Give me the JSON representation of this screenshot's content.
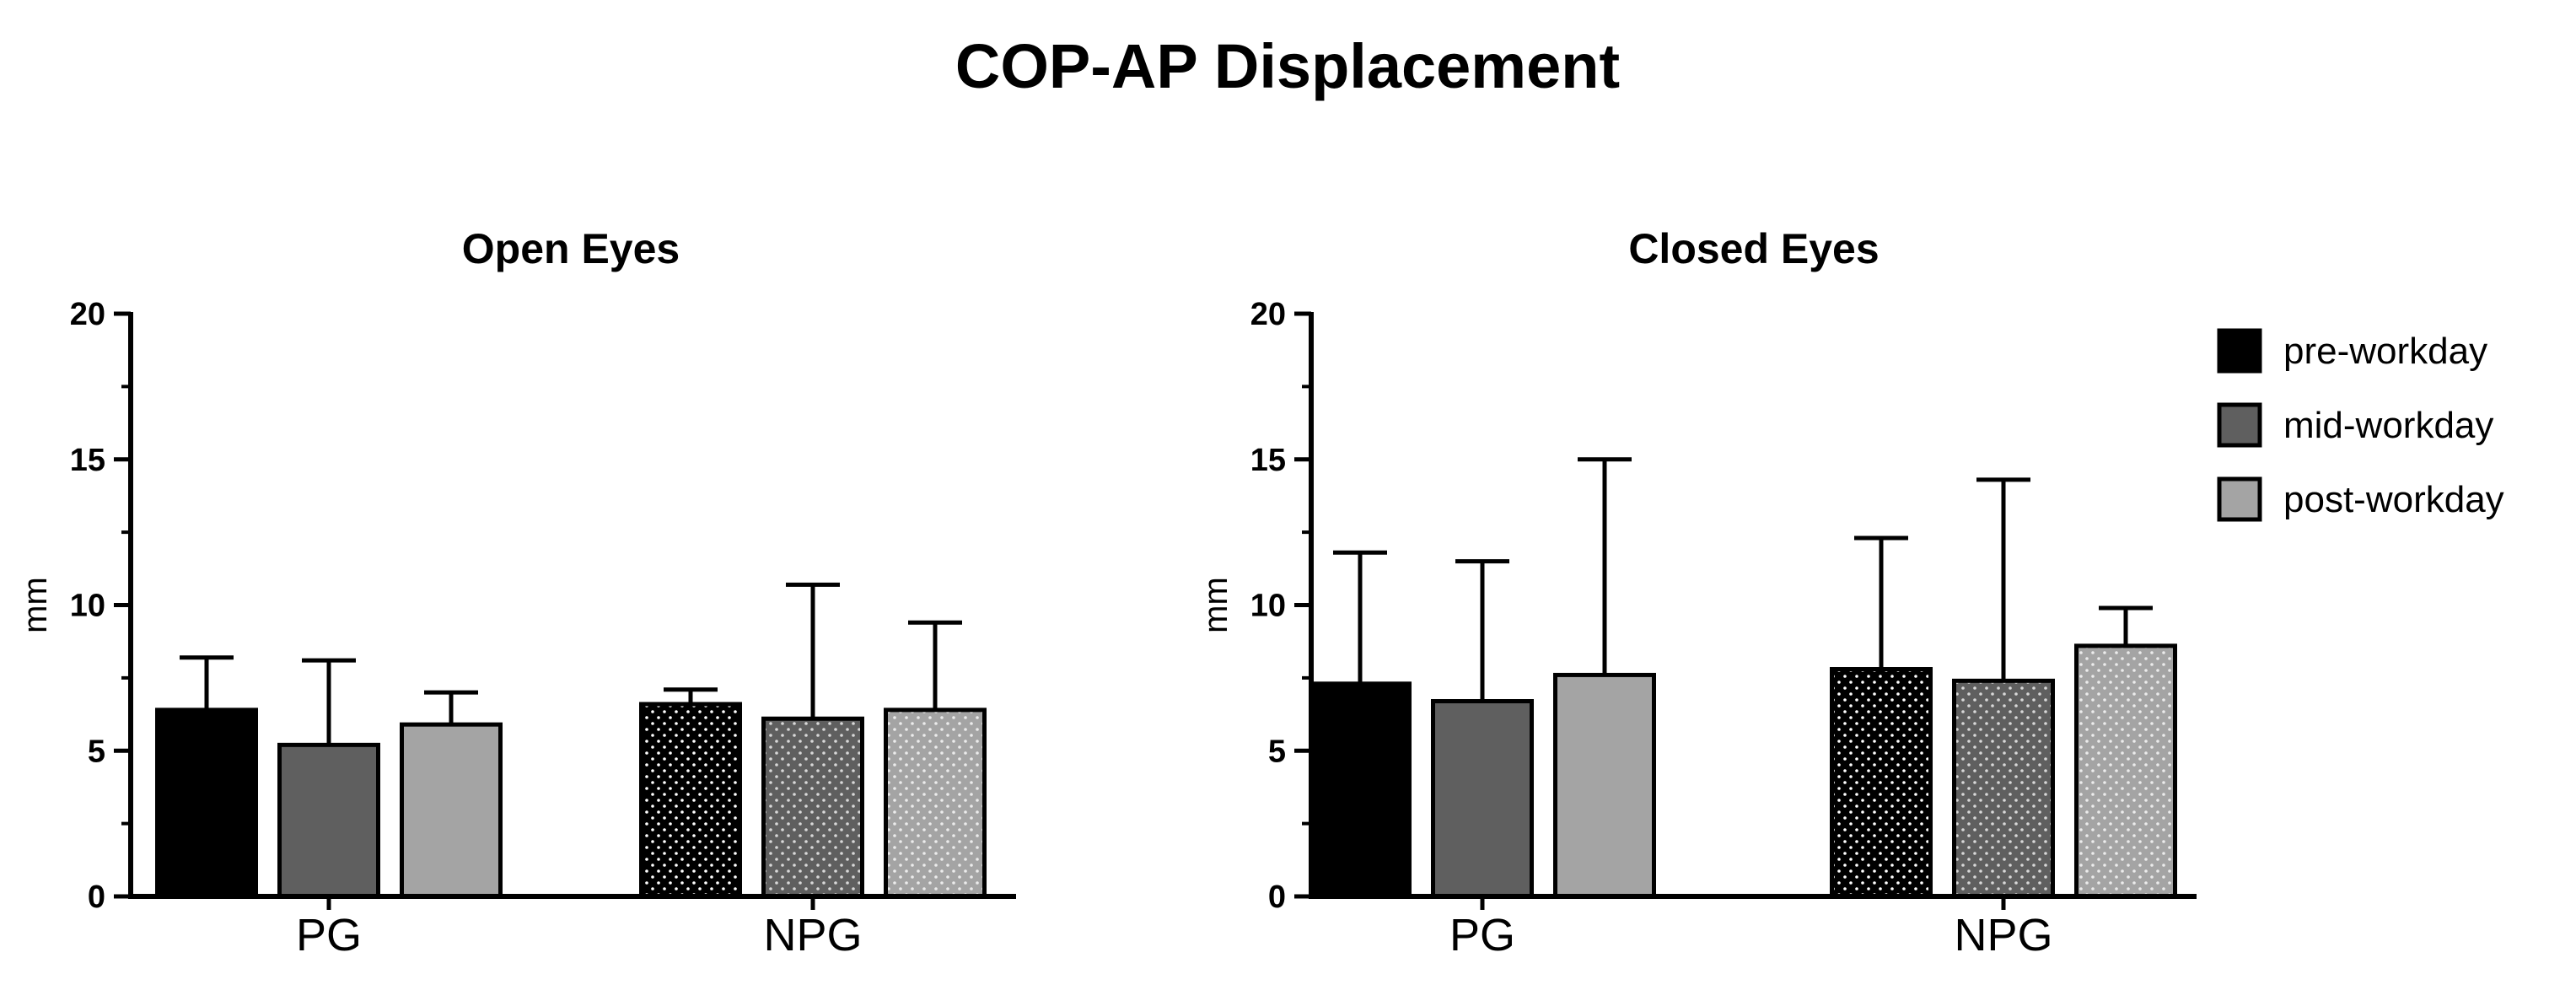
{
  "figure_title": "COP-AP Displacement",
  "legend": [
    {
      "label": "pre-workday",
      "color": "#000000"
    },
    {
      "label": "mid-workday",
      "color": "#5f5f5f"
    },
    {
      "label": "post-workday",
      "color": "#a4a4a4"
    }
  ],
  "chart_data": [
    {
      "type": "bar",
      "title": "Open Eyes",
      "xlabel": "",
      "ylabel": "mm",
      "ylim": [
        0,
        20
      ],
      "yticks": [
        0,
        5,
        10,
        15,
        20
      ],
      "categories": [
        "PG",
        "NPG"
      ],
      "series": [
        {
          "name": "pre-workday",
          "values": [
            6.4,
            6.6
          ],
          "errors": [
            1.8,
            0.5
          ]
        },
        {
          "name": "mid-workday",
          "values": [
            5.2,
            6.1
          ],
          "errors": [
            2.9,
            4.6
          ]
        },
        {
          "name": "post-workday",
          "values": [
            5.9,
            6.4
          ],
          "errors": [
            1.1,
            3.0
          ]
        }
      ]
    },
    {
      "type": "bar",
      "title": "Closed Eyes",
      "xlabel": "",
      "ylabel": "mm",
      "ylim": [
        0,
        20
      ],
      "yticks": [
        0,
        5,
        10,
        15,
        20
      ],
      "categories": [
        "PG",
        "NPG"
      ],
      "series": [
        {
          "name": "pre-workday",
          "values": [
            7.3,
            7.8
          ],
          "errors": [
            4.5,
            4.5
          ]
        },
        {
          "name": "mid-workday",
          "values": [
            6.7,
            7.4
          ],
          "errors": [
            4.8,
            6.9
          ]
        },
        {
          "name": "post-workday",
          "values": [
            7.6,
            8.6
          ],
          "errors": [
            7.4,
            1.3
          ]
        }
      ]
    }
  ]
}
